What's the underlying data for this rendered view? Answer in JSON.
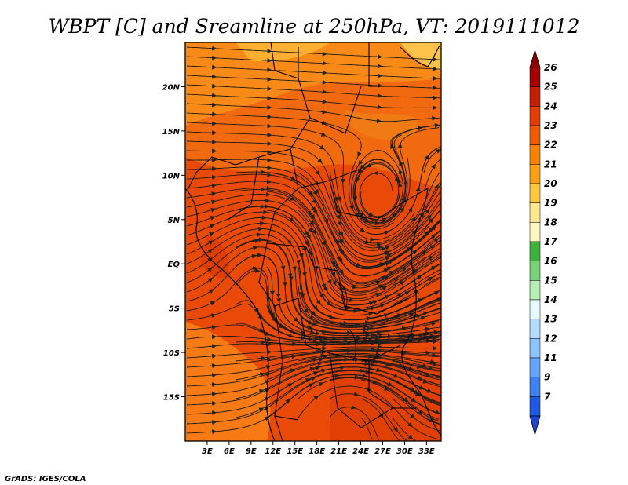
{
  "title": "WBPT [C] and Sreamline at 250hPa, VT: 2019111012",
  "credit": "GrADS: IGES/COLA",
  "map": {
    "lat_ticks": [
      "20N",
      "15N",
      "10N",
      "5N",
      "EQ",
      "5S",
      "10S",
      "15S"
    ],
    "lat_values": [
      20,
      15,
      10,
      5,
      0,
      -5,
      -10,
      -15
    ],
    "lon_ticks": [
      "3E",
      "6E",
      "9E",
      "12E",
      "15E",
      "18E",
      "21E",
      "24E",
      "27E",
      "30E",
      "33E"
    ],
    "lon_values": [
      3,
      6,
      9,
      12,
      15,
      18,
      21,
      24,
      27,
      30,
      33
    ],
    "lon_range": [
      0,
      35
    ],
    "lat_range": [
      -20,
      25
    ]
  },
  "colorbar": {
    "labels": [
      "26",
      "25",
      "24",
      "23",
      "22",
      "21",
      "20",
      "19",
      "18",
      "17",
      "16",
      "15",
      "14",
      "13",
      "12",
      "11",
      "9",
      "7"
    ],
    "colors": [
      "#a50000",
      "#c81e00",
      "#e63c00",
      "#f05a00",
      "#fa8200",
      "#ffa014",
      "#ffc83c",
      "#ffe88c",
      "#fff7c0",
      "#3cb43c",
      "#78d278",
      "#b4f0b4",
      "#e6fafa",
      "#b4dcff",
      "#8cc3ff",
      "#64a5ff",
      "#3c82f0",
      "#1e5ae6"
    ],
    "top_color": "#8c0000",
    "bottom_color": "#1e46d2"
  }
}
